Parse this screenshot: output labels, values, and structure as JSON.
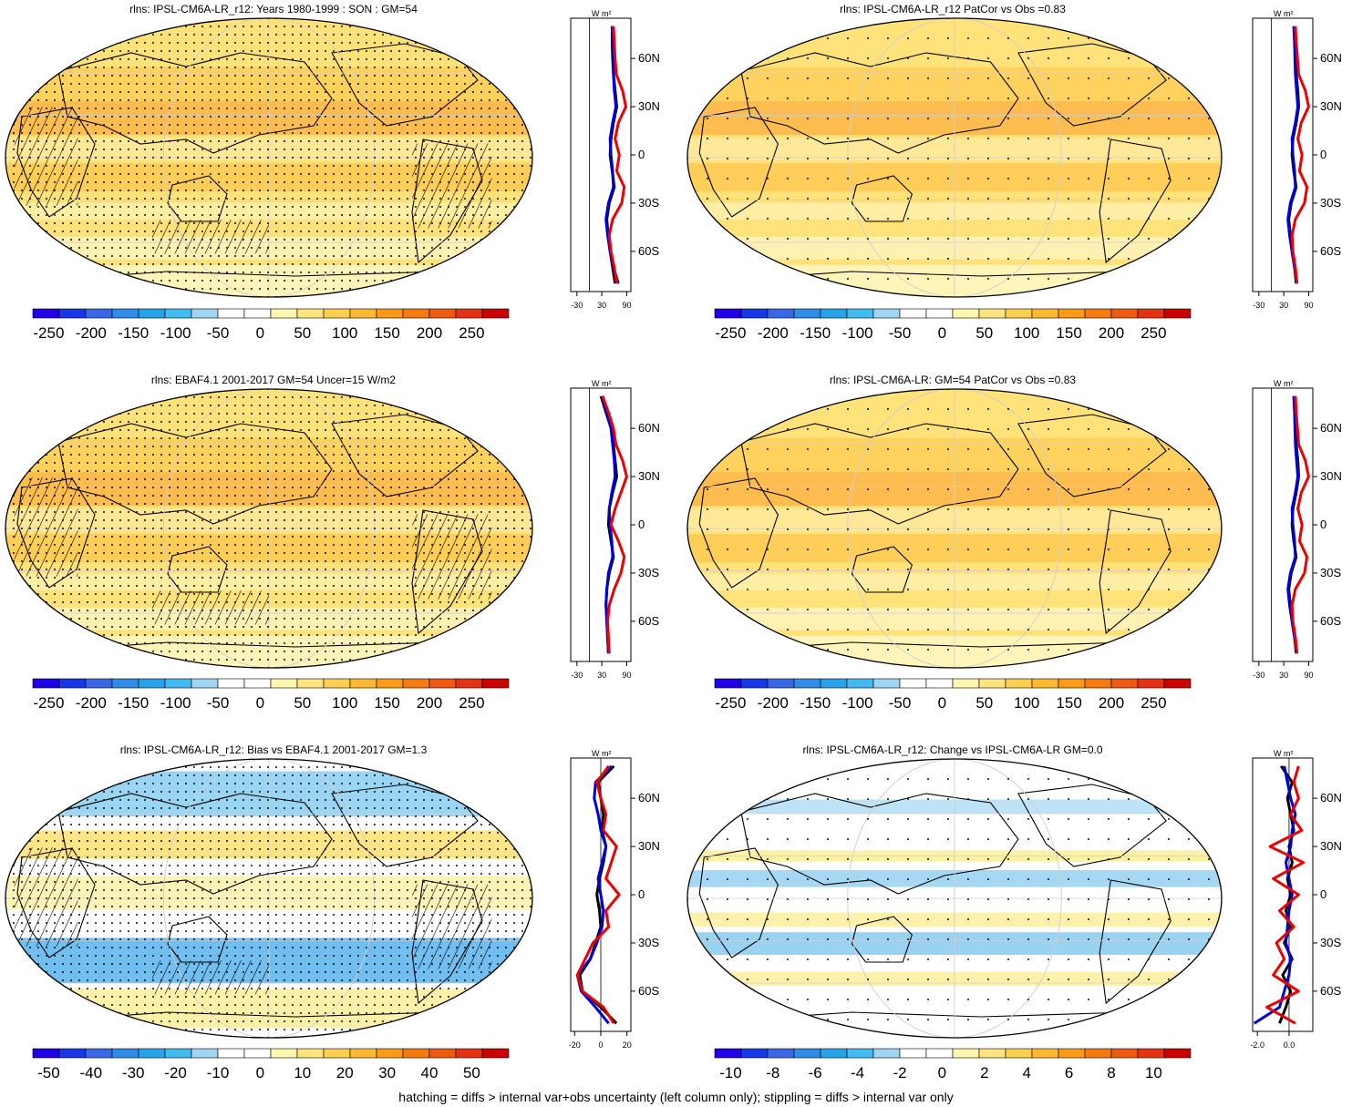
{
  "footer": "hatching = diffs > internal var+obs uncertainty (left column only); stippling = diffs > internal var only",
  "units": "W m²",
  "lat_ticks": [
    "60N",
    "30N",
    "0",
    "30S",
    "60S"
  ],
  "abs_scale": {
    "labels": [
      "-250",
      "-200",
      "-150",
      "-100",
      "-50",
      "0",
      "50",
      "100",
      "150",
      "200",
      "250"
    ],
    "colors": [
      "#2000e8",
      "#1838e8",
      "#3a66e8",
      "#2f8ce8",
      "#27a3ea",
      "#40bcf0",
      "#9fd5f3",
      "#ffffff",
      "#ffffff",
      "#fff6b0",
      "#ffe480",
      "#ffcf50",
      "#ffb830",
      "#ff9a18",
      "#f77a10",
      "#ee5a10",
      "#e63214",
      "#cc0000"
    ]
  },
  "bias_scale": {
    "labels": [
      "-50",
      "-40",
      "-30",
      "-20",
      "-10",
      "0",
      "10",
      "20",
      "30",
      "40",
      "50"
    ],
    "colors": [
      "#2000e8",
      "#1838e8",
      "#3a66e8",
      "#2f8ce8",
      "#27a3ea",
      "#40bcf0",
      "#9fd5f3",
      "#ffffff",
      "#ffffff",
      "#fff6b0",
      "#ffe480",
      "#ffcf50",
      "#ffb830",
      "#ff9a18",
      "#f77a10",
      "#ee5a10",
      "#e63214",
      "#cc0000"
    ]
  },
  "change_scale": {
    "labels": [
      "-10",
      "-8",
      "-6",
      "-4",
      "-2",
      "0",
      "2",
      "4",
      "6",
      "8",
      "10"
    ],
    "colors": [
      "#2000e8",
      "#1838e8",
      "#3a66e8",
      "#2f8ce8",
      "#27a3ea",
      "#40bcf0",
      "#9fd5f3",
      "#ffffff",
      "#ffffff",
      "#fff6b0",
      "#ffe480",
      "#ffcf50",
      "#ffb830",
      "#ff9a18",
      "#f77a10",
      "#ee5a10",
      "#e63214",
      "#cc0000"
    ]
  },
  "panels": [
    {
      "title": "rlns: IPSL-CM6A-LR_r12: Years 1980-1999 : SON : GM=54",
      "scale": "abs",
      "theme": "warm",
      "hatch": true,
      "stipple": "dense"
    },
    {
      "title": "rlns: IPSL-CM6A-LR_r12 PatCor vs Obs =0.83",
      "scale": "abs",
      "theme": "warm",
      "hatch": false,
      "stipple": "sparse"
    },
    {
      "title": "rlns: EBAF4.1 2001-2017 GM=54 Uncer=15 W/m2",
      "scale": "abs",
      "theme": "warm",
      "hatch": true,
      "stipple": "dense"
    },
    {
      "title": "rlns: IPSL-CM6A-LR: GM=54 PatCor vs Obs =0.83",
      "scale": "abs",
      "theme": "warm",
      "hatch": false,
      "stipple": "sparse"
    },
    {
      "title": "rlns: IPSL-CM6A-LR_r12: Bias vs EBAF4.1 2001-2017  GM=1.3",
      "scale": "bias",
      "theme": "bias",
      "hatch": true,
      "stipple": "dense"
    },
    {
      "title": "rlns: IPSL-CM6A-LR_r12: Change vs IPSL-CM6A-LR GM=0.0",
      "scale": "change",
      "theme": "change",
      "hatch": false,
      "stipple": "sparse"
    }
  ],
  "chart_data": [
    {
      "type": "line",
      "panel": 1,
      "xticks": [
        "-30",
        "30",
        "90"
      ],
      "xlim": [
        -45,
        100
      ],
      "lat": [
        80,
        70,
        60,
        50,
        40,
        30,
        20,
        10,
        0,
        -10,
        -20,
        -30,
        -40,
        -50,
        -60,
        -70,
        -80
      ],
      "series": [
        {
          "color": "#000000",
          "values": [
            55,
            55,
            56,
            58,
            62,
            66,
            58,
            52,
            50,
            55,
            60,
            48,
            42,
            45,
            50,
            56,
            62
          ]
        },
        {
          "color": "#0000dd",
          "values": [
            55,
            56,
            58,
            58,
            60,
            64,
            56,
            50,
            52,
            56,
            58,
            46,
            40,
            44,
            50,
            58,
            70
          ]
        },
        {
          "color": "#ee0000",
          "values": [
            58,
            60,
            62,
            65,
            80,
            88,
            70,
            62,
            72,
            66,
            84,
            78,
            56,
            48,
            52,
            60,
            66
          ]
        }
      ]
    },
    {
      "type": "line",
      "panel": 2,
      "xticks": [
        "-30",
        "30",
        "90"
      ],
      "xlim": [
        -45,
        100
      ],
      "lat": [
        80,
        70,
        60,
        50,
        40,
        30,
        20,
        10,
        0,
        -10,
        -20,
        -30,
        -40,
        -50,
        -60,
        -70,
        -80
      ],
      "series": [
        {
          "color": "#000000",
          "values": [
            54,
            56,
            58,
            60,
            64,
            66,
            60,
            52,
            50,
            54,
            60,
            48,
            42,
            46,
            50,
            56,
            60
          ]
        },
        {
          "color": "#0000dd",
          "values": [
            55,
            56,
            57,
            58,
            61,
            64,
            58,
            50,
            52,
            56,
            58,
            46,
            40,
            44,
            50,
            56,
            62
          ]
        },
        {
          "color": "#ee0000",
          "values": [
            58,
            60,
            63,
            66,
            82,
            90,
            72,
            64,
            74,
            68,
            86,
            80,
            58,
            50,
            52,
            58,
            62
          ]
        }
      ]
    },
    {
      "type": "line",
      "panel": 3,
      "xticks": [
        "-30",
        "30",
        "90"
      ],
      "xlim": [
        -45,
        100
      ],
      "lat": [
        80,
        70,
        60,
        50,
        40,
        30,
        20,
        10,
        0,
        -10,
        -20,
        -30,
        -40,
        -50,
        -60,
        -70,
        -80
      ],
      "series": [
        {
          "color": "#000000",
          "values": [
            28,
            40,
            52,
            58,
            62,
            66,
            56,
            48,
            46,
            52,
            58,
            48,
            42,
            40,
            42,
            44,
            46
          ]
        },
        {
          "color": "#0000dd",
          "values": [
            30,
            42,
            52,
            56,
            60,
            62,
            54,
            48,
            50,
            54,
            56,
            46,
            42,
            40,
            42,
            44,
            46
          ]
        },
        {
          "color": "#ee0000",
          "values": [
            32,
            46,
            58,
            64,
            80,
            90,
            76,
            62,
            52,
            70,
            84,
            76,
            60,
            48,
            44,
            46,
            48
          ]
        }
      ]
    },
    {
      "type": "line",
      "panel": 4,
      "xticks": [
        "-30",
        "30",
        "90"
      ],
      "xlim": [
        -45,
        100
      ],
      "lat": [
        80,
        70,
        60,
        50,
        40,
        30,
        20,
        10,
        0,
        -10,
        -20,
        -30,
        -40,
        -50,
        -60,
        -70,
        -80
      ],
      "series": [
        {
          "color": "#000000",
          "values": [
            54,
            56,
            58,
            60,
            64,
            66,
            60,
            52,
            50,
            54,
            60,
            48,
            42,
            46,
            50,
            56,
            60
          ]
        },
        {
          "color": "#0000dd",
          "values": [
            55,
            56,
            57,
            58,
            61,
            64,
            58,
            50,
            52,
            56,
            58,
            46,
            40,
            44,
            50,
            56,
            62
          ]
        },
        {
          "color": "#ee0000",
          "values": [
            58,
            60,
            63,
            66,
            82,
            90,
            72,
            64,
            74,
            68,
            86,
            80,
            58,
            50,
            52,
            58,
            62
          ]
        }
      ]
    },
    {
      "type": "line",
      "panel": 5,
      "xticks": [
        "-20",
        "0",
        "20"
      ],
      "xlim": [
        -23,
        23
      ],
      "lat": [
        80,
        70,
        60,
        50,
        40,
        30,
        20,
        10,
        0,
        -10,
        -20,
        -30,
        -40,
        -50,
        -60,
        -70,
        -80
      ],
      "series": [
        {
          "color": "#000000",
          "values": [
            10,
            -2,
            0,
            2,
            1,
            4,
            2,
            -1,
            -3,
            -1,
            0,
            -4,
            -8,
            -16,
            -14,
            0,
            12
          ]
        },
        {
          "color": "#0000dd",
          "values": [
            8,
            -4,
            -5,
            -2,
            0,
            4,
            1,
            -2,
            0,
            2,
            1,
            -3,
            -8,
            -18,
            -15,
            -4,
            6
          ]
        },
        {
          "color": "#ee0000",
          "values": [
            6,
            -3,
            0,
            4,
            2,
            12,
            8,
            4,
            14,
            4,
            6,
            -6,
            -12,
            -18,
            -14,
            2,
            10
          ]
        }
      ]
    },
    {
      "type": "line",
      "panel": 6,
      "xticks": [
        "-2.0",
        "0.0"
      ],
      "xlim": [
        -2.3,
        1.5
      ],
      "lat": [
        80,
        70,
        60,
        50,
        40,
        30,
        20,
        10,
        0,
        -10,
        -20,
        -30,
        -40,
        -50,
        -60,
        -70,
        -80
      ],
      "series": [
        {
          "color": "#000000",
          "values": [
            -0.5,
            0.2,
            -0.1,
            0.1,
            0.3,
            0.0,
            0.2,
            -0.1,
            0.1,
            -0.2,
            0.1,
            -0.3,
            0.2,
            -0.4,
            0.1,
            -0.2,
            -0.6
          ]
        },
        {
          "color": "#0000dd",
          "values": [
            -0.3,
            -0.1,
            0.1,
            0.4,
            0.2,
            0.1,
            -0.2,
            0.0,
            0.2,
            0.0,
            -0.1,
            -0.2,
            0.1,
            0.0,
            -0.3,
            -0.6,
            -2.2
          ]
        },
        {
          "color": "#ee0000",
          "values": [
            0.6,
            0.3,
            0.6,
            0.1,
            0.8,
            -1.2,
            0.9,
            -1.0,
            0.6,
            -0.6,
            0.3,
            -0.8,
            -0.3,
            -1.0,
            0.6,
            -1.4,
            0.4
          ]
        }
      ]
    }
  ]
}
